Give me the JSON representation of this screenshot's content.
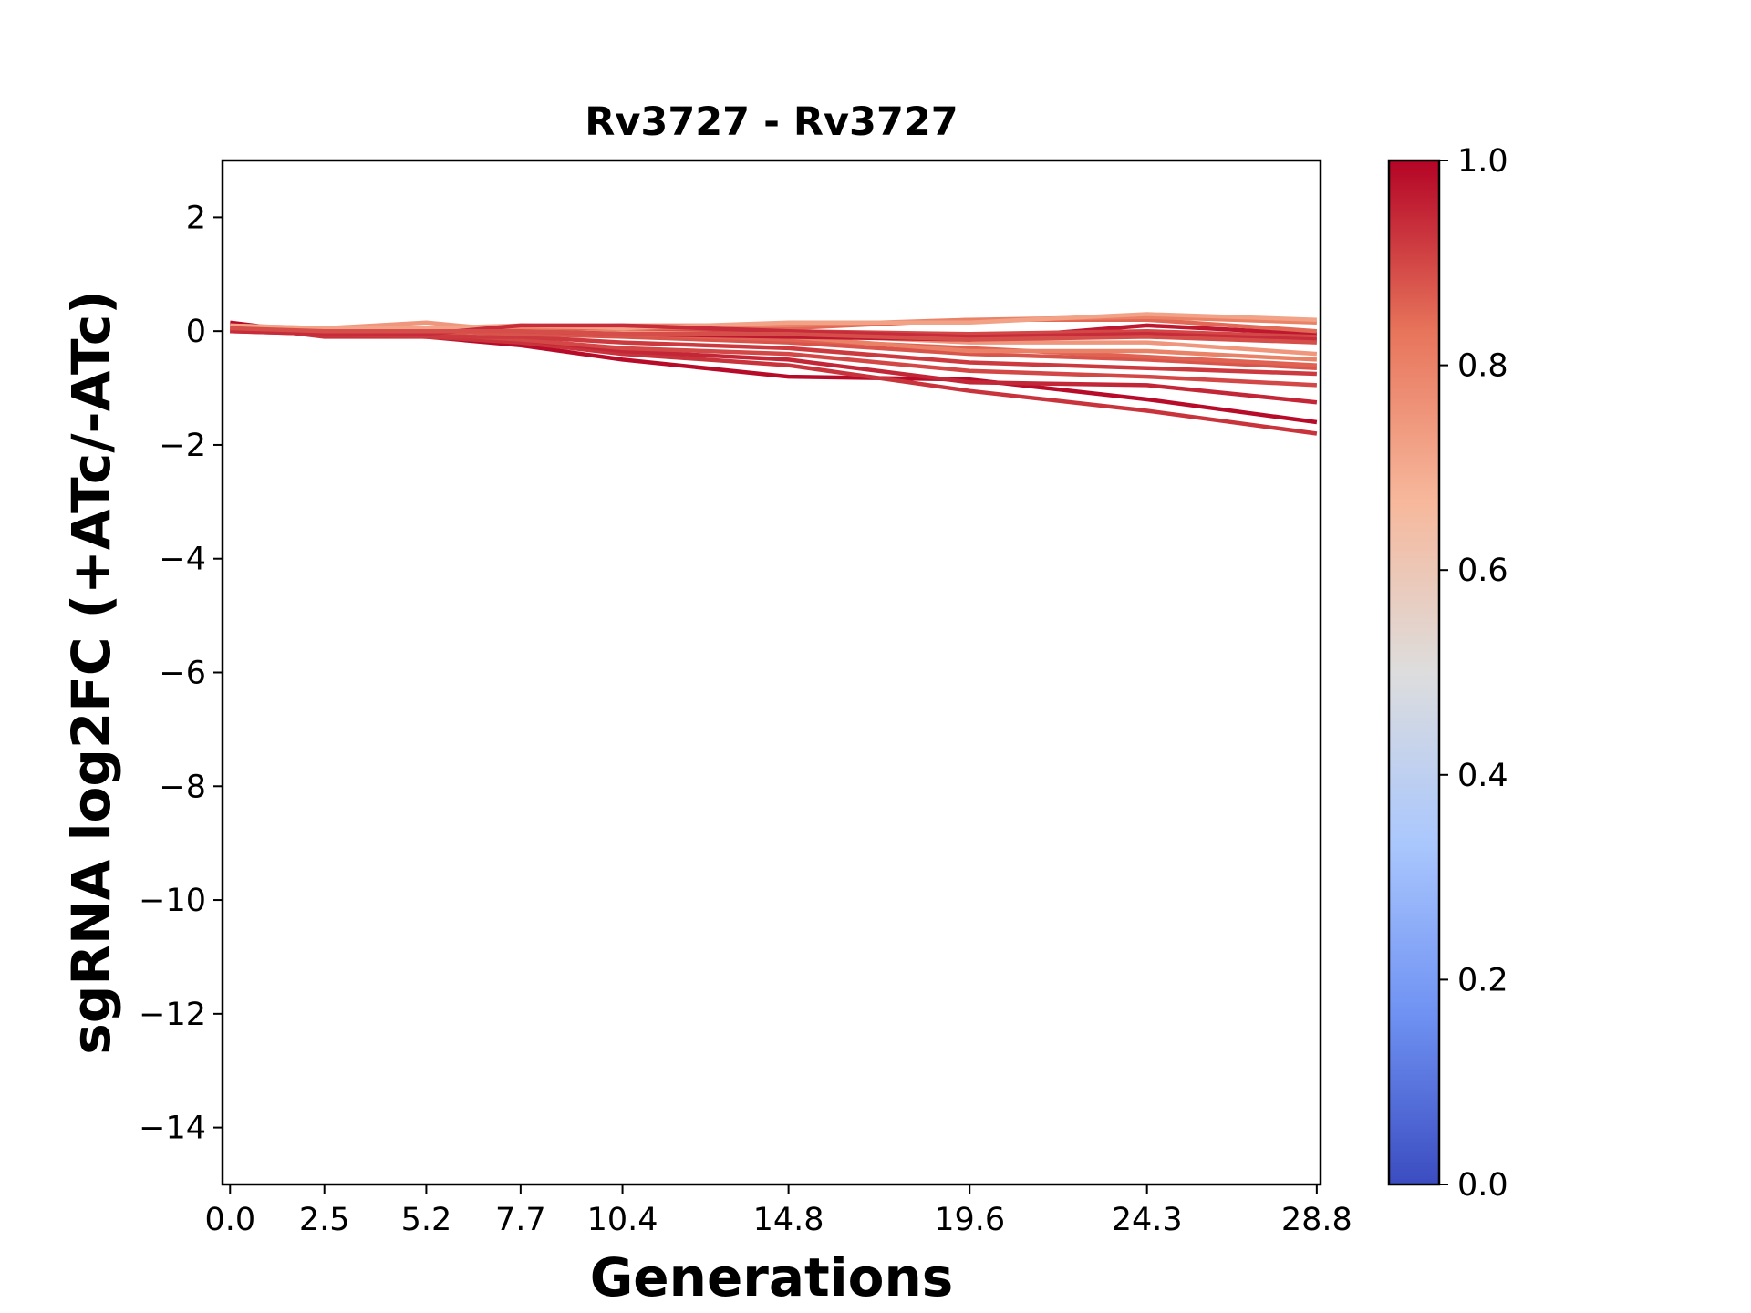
{
  "chart_data": {
    "type": "line",
    "title": "Rv3727 - Rv3727",
    "xlabel": "Generations",
    "ylabel": "sgRNA log2FC (+ATc/-ATc)",
    "x": [
      0.0,
      2.5,
      5.2,
      7.7,
      10.4,
      14.8,
      19.6,
      24.3,
      28.8
    ],
    "xticks": [
      "0.0",
      "2.5",
      "5.2",
      "7.7",
      "10.4",
      "14.8",
      "19.6",
      "24.3",
      "28.8"
    ],
    "xlim": [
      -0.2,
      28.9
    ],
    "ylim": [
      -15,
      3
    ],
    "yticks": [
      2,
      0,
      -2,
      -4,
      -6,
      -8,
      -10,
      -12,
      -14
    ],
    "ytick_labels": [
      "2",
      "0",
      "−2",
      "−4",
      "−6",
      "−8",
      "−10",
      "−12",
      "−14"
    ],
    "grid": false,
    "colorbar": {
      "colormap": "coolwarm",
      "range": [
        0.0,
        1.0
      ],
      "ticks": [
        0.0,
        0.2,
        0.4,
        0.6,
        0.8,
        1.0
      ],
      "tick_labels": [
        "0.0",
        "0.2",
        "0.4",
        "0.6",
        "0.8",
        "1.0"
      ],
      "colors": [
        "#3b4cc0",
        "#6f92f3",
        "#aac7fd",
        "#dddddd",
        "#f7b89c",
        "#e7745b",
        "#b40426"
      ]
    },
    "series": [
      {
        "color_value": 0.99,
        "values": [
          0.15,
          -0.05,
          -0.1,
          -0.25,
          -0.5,
          -0.8,
          -0.85,
          -1.2,
          -1.6
        ]
      },
      {
        "color_value": 0.93,
        "values": [
          0.1,
          -0.1,
          -0.1,
          -0.2,
          -0.4,
          -0.6,
          -1.05,
          -1.4,
          -1.8
        ]
      },
      {
        "color_value": 0.95,
        "values": [
          0.1,
          -0.05,
          -0.05,
          -0.15,
          -0.35,
          -0.5,
          -0.9,
          -0.95,
          -1.25
        ]
      },
      {
        "color_value": 0.9,
        "values": [
          0.05,
          0.0,
          -0.05,
          -0.15,
          -0.3,
          -0.4,
          -0.7,
          -0.8,
          -0.95
        ]
      },
      {
        "color_value": 0.92,
        "values": [
          0.0,
          -0.05,
          -0.1,
          -0.1,
          -0.2,
          -0.3,
          -0.55,
          -0.65,
          -0.75
        ]
      },
      {
        "color_value": 0.88,
        "values": [
          0.05,
          0.0,
          0.0,
          -0.05,
          -0.1,
          -0.2,
          -0.4,
          -0.5,
          -0.65
        ]
      },
      {
        "color_value": 0.86,
        "values": [
          0.0,
          0.0,
          0.0,
          0.0,
          -0.05,
          -0.15,
          -0.3,
          -0.45,
          -0.6
        ]
      },
      {
        "color_value": 0.8,
        "values": [
          0.05,
          0.05,
          0.05,
          0.0,
          -0.05,
          -0.1,
          -0.35,
          -0.35,
          -0.5
        ]
      },
      {
        "color_value": 0.75,
        "values": [
          0.1,
          0.05,
          0.15,
          0.0,
          0.0,
          -0.05,
          -0.2,
          -0.2,
          -0.4
        ]
      },
      {
        "color_value": 0.97,
        "values": [
          0.0,
          0.0,
          0.0,
          0.0,
          -0.05,
          -0.1,
          -0.15,
          0.1,
          -0.05
        ]
      },
      {
        "color_value": 0.9,
        "values": [
          0.05,
          0.0,
          0.05,
          0.05,
          0.05,
          0.0,
          -0.05,
          0.0,
          -0.1
        ]
      },
      {
        "color_value": 0.85,
        "values": [
          0.0,
          0.0,
          0.0,
          0.05,
          0.05,
          0.05,
          0.2,
          0.2,
          0.0
        ]
      },
      {
        "color_value": 0.8,
        "values": [
          0.05,
          0.05,
          0.05,
          0.05,
          0.1,
          0.1,
          0.2,
          0.25,
          0.15
        ]
      },
      {
        "color_value": 0.72,
        "values": [
          0.1,
          0.05,
          0.05,
          0.1,
          0.05,
          0.15,
          0.15,
          0.3,
          0.2
        ]
      },
      {
        "color_value": 0.94,
        "values": [
          0.0,
          -0.05,
          -0.05,
          0.1,
          0.1,
          0.0,
          -0.1,
          -0.05,
          -0.15
        ]
      },
      {
        "color_value": 0.89,
        "values": [
          0.05,
          0.0,
          0.0,
          0.0,
          -0.05,
          -0.05,
          -0.15,
          -0.1,
          -0.2
        ]
      }
    ]
  }
}
